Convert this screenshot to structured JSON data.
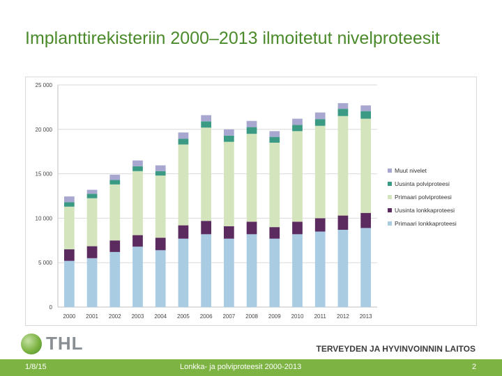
{
  "title": "Implanttirekisteriin 2000–2013 ilmoitetut nivelproteesit",
  "footer": {
    "date": "1/8/15",
    "subtitle": "Lonkka- ja polviproteesit 2000-2013",
    "page": "2"
  },
  "logo": {
    "text": "THL",
    "icon": "thl-globe-icon"
  },
  "org_name": "TERVEYDEN JA HYVINVOINNIN LAITOS",
  "colors": {
    "title": "#4a8a2a",
    "footer_bar": "#7cb342"
  },
  "chart_data": {
    "type": "bar",
    "stacked": true,
    "categories": [
      "2000",
      "2001",
      "2002",
      "2003",
      "2004",
      "2005",
      "2006",
      "2007",
      "2008",
      "2009",
      "2010",
      "2011",
      "2012",
      "2013"
    ],
    "ylim": [
      0,
      25000
    ],
    "yticks": [
      0,
      5000,
      10000,
      15000,
      20000,
      25000
    ],
    "ytick_labels": [
      "0",
      "5 000",
      "10 000",
      "15 000",
      "20 000",
      "25 000"
    ],
    "grid": true,
    "legend_position": "right",
    "series": [
      {
        "name": "Primaari lonkkaproteesi",
        "color": "#a9cce3",
        "values": [
          5200,
          5500,
          6200,
          6800,
          6400,
          7700,
          8200,
          7700,
          8200,
          7700,
          8200,
          8500,
          8700,
          8900
        ]
      },
      {
        "name": "Uusinta lonkkaproteesi",
        "color": "#5b2a5e",
        "values": [
          1300,
          1350,
          1300,
          1300,
          1400,
          1500,
          1500,
          1400,
          1400,
          1300,
          1400,
          1500,
          1600,
          1700
        ]
      },
      {
        "name": "Primaari polviproteesi",
        "color": "#d4e4bc",
        "values": [
          4800,
          5400,
          6300,
          7200,
          7000,
          9100,
          10500,
          9500,
          9900,
          9500,
          10200,
          10400,
          11200,
          10600
        ]
      },
      {
        "name": "Uusinta polviproteesi",
        "color": "#3a9a84",
        "values": [
          500,
          500,
          500,
          550,
          500,
          650,
          700,
          700,
          750,
          650,
          700,
          750,
          800,
          850
        ]
      },
      {
        "name": "Muut nivelet",
        "color": "#a7a7d0",
        "values": [
          650,
          450,
          600,
          650,
          650,
          700,
          700,
          700,
          700,
          650,
          700,
          750,
          650,
          650
        ]
      }
    ]
  }
}
